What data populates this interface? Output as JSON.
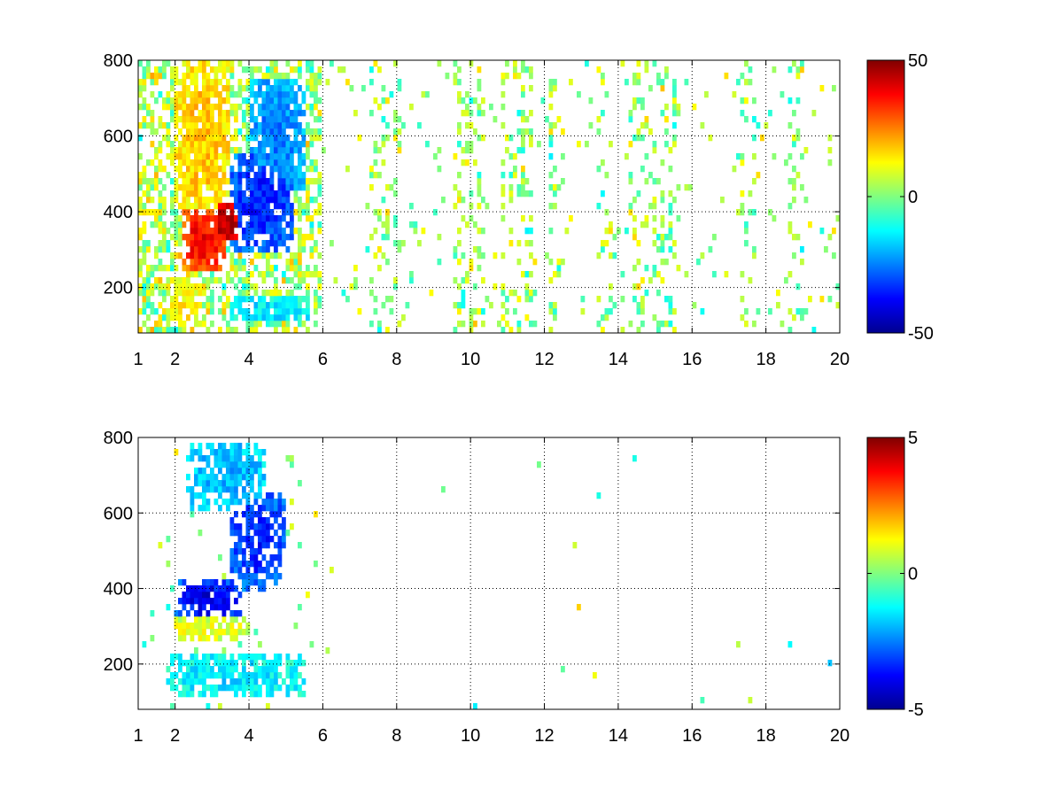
{
  "chart_data": [
    {
      "type": "heatmap",
      "title": "",
      "xlabel": "",
      "ylabel": "",
      "xlim": [
        1,
        20
      ],
      "ylim": [
        80,
        800
      ],
      "grid": true,
      "colormap": "jet",
      "xticks": [
        {
          "value": 1,
          "label": "1"
        },
        {
          "value": 2,
          "label": "2"
        },
        {
          "value": 4,
          "label": "4"
        },
        {
          "value": 6,
          "label": "6"
        },
        {
          "value": 8,
          "label": "8"
        },
        {
          "value": 10,
          "label": "10"
        },
        {
          "value": 12,
          "label": "12"
        },
        {
          "value": 14,
          "label": "14"
        },
        {
          "value": 16,
          "label": "16"
        },
        {
          "value": 18,
          "label": "18"
        },
        {
          "value": 20,
          "label": "20"
        }
      ],
      "yticks": [
        {
          "value": 200,
          "label": "200"
        },
        {
          "value": 400,
          "label": "400"
        },
        {
          "value": 600,
          "label": "600"
        },
        {
          "value": 800,
          "label": "800"
        }
      ],
      "colorbar": {
        "range": [
          -50,
          50
        ],
        "ticks": [
          {
            "value": 50,
            "label": "50"
          },
          {
            "value": 0,
            "label": "0"
          },
          {
            "value": -50,
            "label": "-50"
          }
        ]
      },
      "features": [
        {
          "x": [
            2.2,
            3.4
          ],
          "y": [
            250,
            400
          ],
          "value": 38
        },
        {
          "x": [
            3.0,
            3.8
          ],
          "y": [
            320,
            430
          ],
          "value": 45
        },
        {
          "x": [
            2.0,
            3.5
          ],
          "y": [
            400,
            800
          ],
          "value": 18
        },
        {
          "x": [
            1.8,
            2.6
          ],
          "y": [
            100,
            220
          ],
          "value": 15
        },
        {
          "x": [
            3.5,
            5.2
          ],
          "y": [
            300,
            560
          ],
          "value": -35
        },
        {
          "x": [
            4.0,
            5.5
          ],
          "y": [
            450,
            750
          ],
          "value": -25
        },
        {
          "x": [
            3.5,
            5.8
          ],
          "y": [
            110,
            170
          ],
          "value": -15
        }
      ]
    },
    {
      "type": "heatmap",
      "title": "",
      "xlabel": "",
      "ylabel": "",
      "xlim": [
        1,
        20
      ],
      "ylim": [
        80,
        800
      ],
      "grid": true,
      "colormap": "jet",
      "xticks": [
        {
          "value": 1,
          "label": "1"
        },
        {
          "value": 2,
          "label": "2"
        },
        {
          "value": 4,
          "label": "4"
        },
        {
          "value": 6,
          "label": "6"
        },
        {
          "value": 8,
          "label": "8"
        },
        {
          "value": 10,
          "label": "10"
        },
        {
          "value": 12,
          "label": "12"
        },
        {
          "value": 14,
          "label": "14"
        },
        {
          "value": 16,
          "label": "16"
        },
        {
          "value": 18,
          "label": "18"
        },
        {
          "value": 20,
          "label": "20"
        }
      ],
      "yticks": [
        {
          "value": 200,
          "label": "200"
        },
        {
          "value": 400,
          "label": "400"
        },
        {
          "value": 600,
          "label": "600"
        },
        {
          "value": 800,
          "label": "800"
        }
      ],
      "colorbar": {
        "range": [
          -5,
          5
        ],
        "ticks": [
          {
            "value": 5,
            "label": "5"
          },
          {
            "value": 0,
            "label": "0"
          },
          {
            "value": -5,
            "label": "-5"
          }
        ]
      },
      "features": [
        {
          "x": [
            2.0,
            3.8
          ],
          "y": [
            320,
            420
          ],
          "value": -4
        },
        {
          "x": [
            3.5,
            5.0
          ],
          "y": [
            400,
            650
          ],
          "value": -3.5
        },
        {
          "x": [
            2.3,
            4.5
          ],
          "y": [
            600,
            800
          ],
          "value": -2
        },
        {
          "x": [
            2.0,
            4.0
          ],
          "y": [
            260,
            330
          ],
          "value": 1
        },
        {
          "x": [
            1.8,
            5.5
          ],
          "y": [
            110,
            220
          ],
          "value": -1.5
        }
      ]
    }
  ]
}
